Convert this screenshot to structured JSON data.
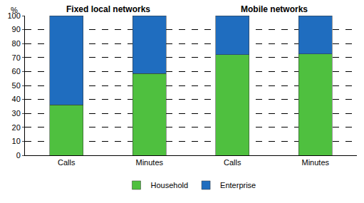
{
  "chart_data": {
    "type": "bar",
    "stacked": true,
    "ylabel": "%",
    "groups": [
      {
        "name": "Fixed local networks",
        "size": 2
      },
      {
        "name": "Mobile networks",
        "size": 2
      }
    ],
    "categories": [
      "Calls",
      "Minutes",
      "Calls",
      "Minutes"
    ],
    "series": [
      {
        "name": "Household",
        "color": "#4fc03f",
        "values": [
          36,
          58.5,
          72,
          72.5
        ]
      },
      {
        "name": "Enterprise",
        "color": "#1f6dbf",
        "values": [
          64,
          41.5,
          28,
          27.5
        ]
      }
    ],
    "ylim": [
      0,
      100
    ],
    "yticks": [
      0,
      10,
      20,
      30,
      40,
      50,
      60,
      70,
      80,
      90,
      100
    ],
    "grid": true,
    "legend": "bottom"
  }
}
